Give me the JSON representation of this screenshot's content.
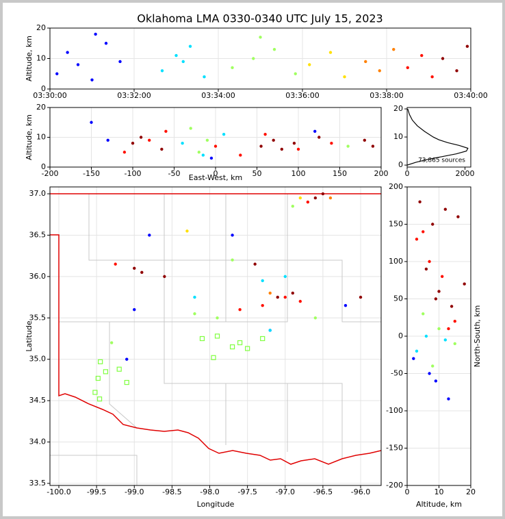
{
  "title": "Oklahoma LMA 0330-0340 UTC July 15, 2023",
  "chart_data": [
    {
      "type": "scatter",
      "ylabel": "Altitude, km",
      "xlim": [
        "03:30:00",
        "03:40:00"
      ],
      "xticks": [
        "03:30:00",
        "03:32:00",
        "03:34:00",
        "03:36:00",
        "03:38:00",
        "03:40:00"
      ],
      "ylim": [
        0,
        20
      ],
      "yticks": [
        0,
        10,
        20
      ],
      "grid": true,
      "series": [
        {
          "color": "#0000ff",
          "x": [
            "03:30:10",
            "03:30:25",
            "03:30:40",
            "03:31:00",
            "03:31:20",
            "03:31:40",
            "03:31:05"
          ],
          "y": [
            5,
            12,
            8,
            3,
            15,
            9,
            18
          ]
        },
        {
          "color": "#00e0ff",
          "x": [
            "03:32:40",
            "03:33:00",
            "03:33:20",
            "03:33:40",
            "03:33:10"
          ],
          "y": [
            6,
            11,
            14,
            4,
            9
          ]
        },
        {
          "color": "#a0ff60",
          "x": [
            "03:34:20",
            "03:34:50",
            "03:35:20",
            "03:35:50",
            "03:35:00"
          ],
          "y": [
            7,
            10,
            13,
            5,
            17
          ]
        },
        {
          "color": "#ffe000",
          "x": [
            "03:36:10",
            "03:36:40",
            "03:37:00"
          ],
          "y": [
            8,
            12,
            4
          ]
        },
        {
          "color": "#ff8000",
          "x": [
            "03:37:30",
            "03:37:50",
            "03:38:10"
          ],
          "y": [
            9,
            6,
            13
          ]
        },
        {
          "color": "#ff1000",
          "x": [
            "03:38:30",
            "03:38:50",
            "03:39:05"
          ],
          "y": [
            7,
            11,
            4
          ]
        },
        {
          "color": "#900000",
          "x": [
            "03:39:20",
            "03:39:40",
            "03:39:55"
          ],
          "y": [
            10,
            6,
            14
          ]
        }
      ]
    },
    {
      "type": "scatter",
      "xlabel": "East-West, km",
      "ylabel": "Altitude, km",
      "xlim": [
        -200,
        200
      ],
      "xticks": [
        -200,
        -150,
        -100,
        -50,
        0,
        50,
        100,
        150,
        200
      ],
      "ylim": [
        0,
        20
      ],
      "yticks": [
        0,
        10,
        20
      ],
      "grid": true,
      "series": [
        {
          "color": "#0000ff",
          "x": [
            -150,
            -5,
            120,
            -130
          ],
          "y": [
            15,
            3,
            12,
            9
          ]
        },
        {
          "color": "#00e0ff",
          "x": [
            -40,
            -15,
            10
          ],
          "y": [
            8,
            4,
            11
          ]
        },
        {
          "color": "#a0ff60",
          "x": [
            -20,
            -10,
            -30,
            160
          ],
          "y": [
            5,
            9,
            13,
            7
          ]
        },
        {
          "color": "#ff1000",
          "x": [
            -110,
            -80,
            -60,
            0,
            30,
            60,
            100,
            140
          ],
          "y": [
            5,
            9,
            12,
            7,
            4,
            11,
            6,
            8
          ]
        },
        {
          "color": "#900000",
          "x": [
            -100,
            -90,
            -65,
            55,
            70,
            80,
            95,
            125,
            180,
            190
          ],
          "y": [
            8,
            10,
            6,
            7,
            9,
            6,
            8,
            10,
            9,
            7
          ]
        }
      ]
    },
    {
      "type": "line",
      "annotation": "73,865 sources",
      "xlim": [
        0,
        2200
      ],
      "xticks": [
        0,
        2000
      ],
      "ylim": [
        -0.7,
        20.5
      ],
      "yticks": [
        0,
        10,
        20
      ],
      "grid": false,
      "series": [
        {
          "color": "#000000",
          "x": [
            0,
            300,
            700,
            1200,
            1700,
            2050,
            2100,
            1800,
            1400,
            1100,
            900,
            600,
            350,
            180,
            80,
            20
          ],
          "y": [
            0,
            1,
            2,
            3,
            4,
            5,
            6,
            7,
            8,
            9,
            10,
            12,
            14,
            16,
            18,
            20
          ]
        }
      ]
    },
    {
      "type": "scatter",
      "xlabel": "Longitude",
      "ylabel": "Latitude",
      "xlim": [
        -100.118,
        -95.728
      ],
      "xticks": [
        {
          "value": -100,
          "label": "-100.0"
        },
        {
          "value": -99.5,
          "label": "-99.5"
        },
        {
          "value": -99,
          "label": "-99.0"
        },
        {
          "value": -98.5,
          "label": "-98.5"
        },
        {
          "value": -98,
          "label": "-98.0"
        },
        {
          "value": -97.5,
          "label": "-97.5"
        },
        {
          "value": -97,
          "label": "-97.0"
        },
        {
          "value": -96.5,
          "label": "-96.5"
        },
        {
          "value": -96,
          "label": "-96.0"
        }
      ],
      "ylim": [
        33.475,
        37.083
      ],
      "yticks": [
        {
          "value": 33.5,
          "label": "33.5"
        },
        {
          "value": 34,
          "label": "34.0"
        },
        {
          "value": 34.5,
          "label": "34.5"
        },
        {
          "value": 35,
          "label": "35.0"
        },
        {
          "value": 35.5,
          "label": "35.5"
        },
        {
          "value": 36,
          "label": "36.0"
        },
        {
          "value": 36.5,
          "label": "36.5"
        },
        {
          "value": 37,
          "label": "37.0"
        }
      ],
      "grid": true,
      "series": [
        {
          "color": "#0000ff",
          "x": [
            -97.7,
            -99.0,
            -98.8,
            -99.1,
            -97.2,
            -96.2
          ],
          "y": [
            36.5,
            35.6,
            36.5,
            35.0,
            35.35,
            35.65
          ]
        },
        {
          "color": "#00e0ff",
          "x": [
            -97.3,
            -97.0,
            -98.2,
            -97.2
          ],
          "y": [
            35.95,
            36.0,
            35.75,
            35.35
          ]
        },
        {
          "color": "#a0ff60",
          "x": [
            -98.2,
            -97.9,
            -97.7,
            -99.3,
            -96.9,
            -96.6
          ],
          "y": [
            35.55,
            35.5,
            36.2,
            35.2,
            36.85,
            35.5
          ]
        },
        {
          "color": "#ffe000",
          "x": [
            -98.3,
            -96.8
          ],
          "y": [
            36.55,
            36.95
          ]
        },
        {
          "color": "#ff8000",
          "x": [
            -97.2,
            -96.4
          ],
          "y": [
            35.8,
            36.95
          ]
        },
        {
          "color": "#ff1000",
          "x": [
            -99.25,
            -97.6,
            -97.3,
            -97.0,
            -96.8,
            -96.7
          ],
          "y": [
            36.15,
            35.6,
            35.65,
            35.75,
            35.7,
            36.9
          ]
        },
        {
          "color": "#900000",
          "x": [
            -99.0,
            -98.9,
            -98.6,
            -97.4,
            -97.1,
            -96.9,
            -96.6,
            -96.0,
            -96.5
          ],
          "y": [
            36.1,
            36.05,
            36.0,
            36.15,
            35.75,
            35.8,
            36.95,
            35.75,
            37.0
          ]
        },
        {
          "color": "#80ff40",
          "marker": "square",
          "x": [
            -99.45,
            -99.38,
            -99.2,
            -99.1,
            -99.48,
            -99.52,
            -99.46,
            -98.1,
            -97.9,
            -97.7,
            -97.6,
            -97.5,
            -97.3,
            -97.95
          ],
          "y": [
            34.97,
            34.85,
            34.88,
            34.72,
            34.77,
            34.6,
            34.52,
            35.25,
            35.28,
            35.15,
            35.2,
            35.13,
            35.25,
            35.02
          ]
        }
      ]
    },
    {
      "type": "scatter",
      "xlabel": "Altitude, km",
      "ylabel": "North-South, km",
      "ylabel_side": "right",
      "xlim": [
        0,
        20
      ],
      "xticks": [
        0,
        10,
        20
      ],
      "ylim": [
        -200,
        200
      ],
      "yticks": [
        -200,
        -150,
        -100,
        -50,
        0,
        50,
        100,
        150,
        200
      ],
      "grid": true,
      "series": [
        {
          "color": "#0000ff",
          "x": [
            2,
            7,
            13,
            9
          ],
          "y": [
            -30,
            -50,
            -84,
            -60
          ]
        },
        {
          "color": "#00e0ff",
          "x": [
            6,
            12,
            3
          ],
          "y": [
            0,
            -5,
            -20
          ]
        },
        {
          "color": "#a0ff60",
          "x": [
            5,
            10,
            15,
            8
          ],
          "y": [
            30,
            10,
            -10,
            -40
          ]
        },
        {
          "color": "#ff1000",
          "x": [
            3,
            7,
            11,
            15,
            5,
            13
          ],
          "y": [
            130,
            100,
            80,
            20,
            140,
            10
          ]
        },
        {
          "color": "#900000",
          "x": [
            4,
            8,
            12,
            16,
            6,
            10,
            14,
            18,
            9
          ],
          "y": [
            180,
            150,
            170,
            160,
            90,
            60,
            40,
            70,
            50
          ]
        }
      ]
    }
  ]
}
